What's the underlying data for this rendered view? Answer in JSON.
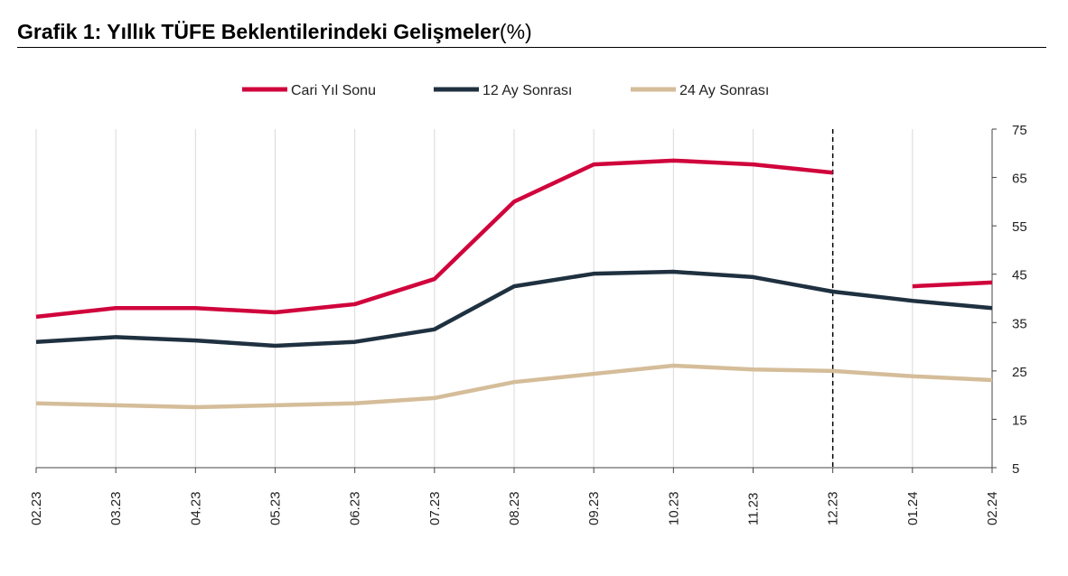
{
  "chart_data": {
    "type": "line",
    "title": "Grafik 1: Yıllık TÜFE Beklentilerindeki Gelişmeler",
    "title_unit": "(%)",
    "xlabel": "",
    "ylabel": "",
    "categories": [
      "02.23",
      "03.23",
      "04.23",
      "05.23",
      "06.23",
      "07.23",
      "08.23",
      "09.23",
      "10.23",
      "11.23",
      "12.23",
      "01.24",
      "02.24"
    ],
    "ylim": [
      5,
      75
    ],
    "yticks": [
      75,
      65,
      55,
      45,
      35,
      25,
      15,
      5
    ],
    "grid": "vertical",
    "legend_position": "top",
    "annotation": {
      "type": "dashed-vertical-line",
      "at": "12.23"
    },
    "series": [
      {
        "name": "Cari Yıl Sonu",
        "color": "#d0043c",
        "values": [
          36.2,
          38.0,
          38.0,
          37.1,
          38.8,
          44.0,
          60.0,
          67.7,
          68.5,
          67.7,
          66.0,
          42.5,
          43.3
        ],
        "break_after": "12.23"
      },
      {
        "name": "12 Ay Sonrası",
        "color": "#1f3140",
        "values": [
          31.0,
          32.0,
          31.3,
          30.2,
          31.0,
          33.6,
          42.5,
          45.1,
          45.5,
          44.4,
          41.4,
          39.5,
          38.0
        ]
      },
      {
        "name": "24 Ay Sonrası",
        "color": "#d5bd9a",
        "values": [
          18.3,
          17.9,
          17.5,
          17.9,
          18.3,
          19.4,
          22.7,
          24.4,
          26.1,
          25.3,
          25.0,
          23.9,
          23.1
        ]
      }
    ]
  }
}
